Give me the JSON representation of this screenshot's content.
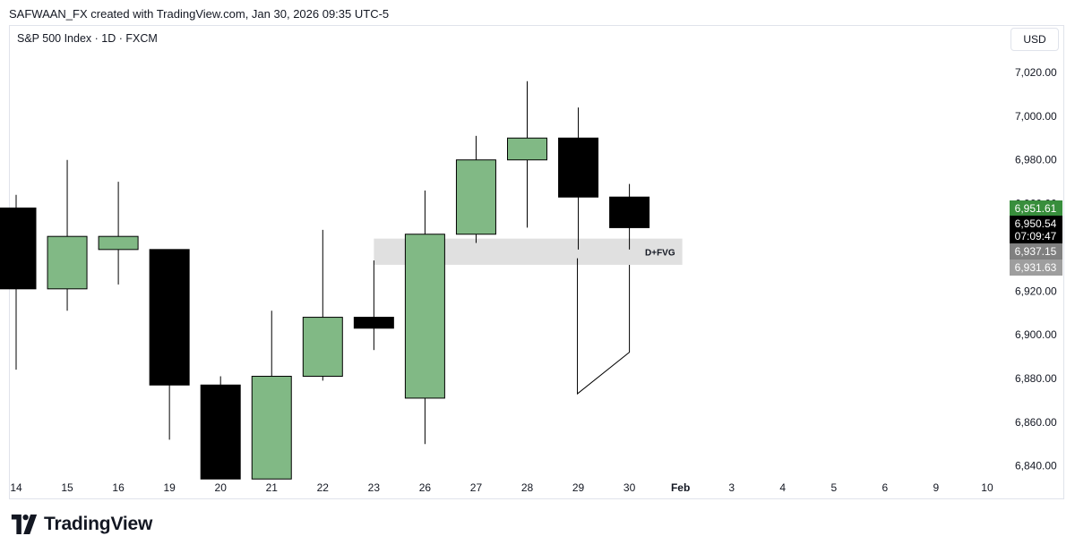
{
  "header": {
    "created_line": "SAFWAAN_FX created with TradingView.com, Jan 30, 2026 09:35 UTC-5"
  },
  "symbol": {
    "title": "S&P 500 Index · 1D · FXCM"
  },
  "currency": "USD",
  "colors": {
    "up_fill": "#81b985",
    "down_fill": "#000000",
    "fvg_fill": "#e0e0e0",
    "price_green": "#388e3c",
    "price_dark": "#000000",
    "price_grey": "#808080",
    "price_grey_light": "#9e9e9e"
  },
  "chart_data": {
    "type": "candlestick",
    "ylim": [
      6830,
      7030
    ],
    "y_ticks": [
      "6,840.00",
      "6,860.00",
      "6,880.00",
      "6,900.00",
      "6,920.00",
      "6,940.00",
      "6,960.00",
      "6,980.00",
      "7,000.00",
      "7,020.00"
    ],
    "x_labels": [
      "14",
      "15",
      "16",
      "19",
      "20",
      "21",
      "22",
      "23",
      "26",
      "27",
      "28",
      "29",
      "30",
      "Feb",
      "3",
      "4",
      "5",
      "6",
      "9",
      "10"
    ],
    "candles": [
      {
        "date": "14",
        "open": 6958,
        "high": 6964,
        "low": 6884,
        "close": 6921
      },
      {
        "date": "15",
        "open": 6921,
        "high": 6980,
        "low": 6911,
        "close": 6945
      },
      {
        "date": "16",
        "open": 6939,
        "high": 6970,
        "low": 6923,
        "close": 6945
      },
      {
        "date": "19",
        "open": 6939,
        "high": 6939,
        "low": 6852,
        "close": 6877
      },
      {
        "date": "20",
        "open": 6877,
        "high": 6881,
        "low": 6834,
        "close": 6834
      },
      {
        "date": "21",
        "open": 6834,
        "high": 6911,
        "low": 6834,
        "close": 6881
      },
      {
        "date": "22",
        "open": 6881,
        "high": 6948,
        "low": 6879,
        "close": 6908
      },
      {
        "date": "23",
        "open": 6908,
        "high": 6934,
        "low": 6893,
        "close": 6903
      },
      {
        "date": "26",
        "open": 6871,
        "high": 6966,
        "low": 6850,
        "close": 6946
      },
      {
        "date": "27",
        "open": 6946,
        "high": 6991,
        "low": 6942,
        "close": 6980
      },
      {
        "date": "28",
        "open": 6980,
        "high": 7016,
        "low": 6949,
        "close": 6990
      },
      {
        "date": "29",
        "open": 6990,
        "high": 7004,
        "low": 6939,
        "close": 6963
      },
      {
        "date": "30",
        "open": 6963,
        "high": 6969,
        "low": 6939,
        "close": 6949
      }
    ],
    "fvg_zone": {
      "label": "D+FVG",
      "top": 6944,
      "bottom": 6932,
      "from": "23",
      "to": "Feb"
    },
    "annotation_line": [
      {
        "date": "29",
        "price": 6935
      },
      {
        "date": "29",
        "price": 6873
      },
      {
        "date": "30",
        "price": 6892
      },
      {
        "date": "30",
        "price": 6932
      }
    ],
    "price_labels": [
      {
        "value": "6,951.61",
        "color": "#388e3c"
      },
      {
        "value": "6,950.54",
        "sub": "07:09:47",
        "color": "#000000"
      },
      {
        "value": "6,937.15",
        "color": "#808080"
      },
      {
        "value": "6,931.63",
        "color": "#9e9e9e"
      }
    ]
  },
  "footer": {
    "logo_text": "TradingView"
  }
}
